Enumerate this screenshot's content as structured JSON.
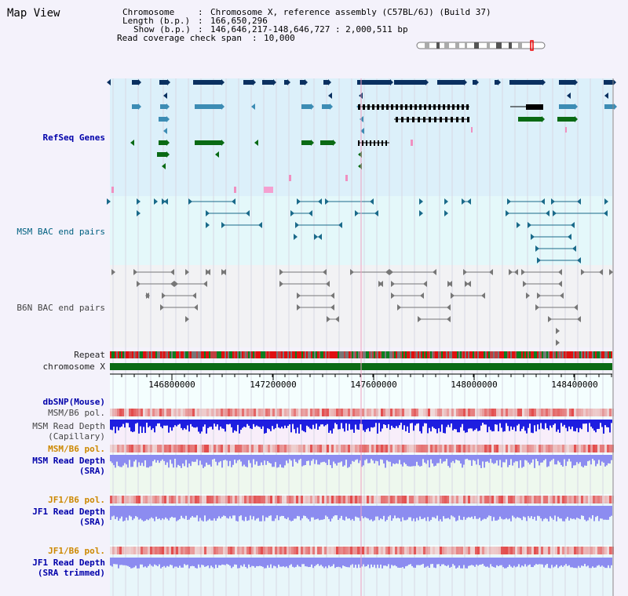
{
  "view_title": "Map View",
  "header": {
    "chromosome_label": "Chromosome",
    "chromosome_value": "Chromosome X, reference assembly (C57BL/6J) (Build 37)",
    "length_label": "Length (b.p.)",
    "length_value": "166,650,296",
    "show_label": "Show (b.p.)",
    "show_value": "146,646,217-148,646,727 : 2,000,511 bp",
    "coverage_label": "Read coverage check span",
    "coverage_value": "10,000"
  },
  "tracks": {
    "refseq": "RefSeq Genes",
    "msm_bac": "MSM BAC end pairs",
    "b6n_bac": "B6N BAC end pairs",
    "repeat": "Repeat",
    "chromosome": "chromosome X",
    "dbsnp": "dbSNP(Mouse)",
    "msm_b6_pol_1": "MSM/B6 pol.",
    "msm_read_depth_cap_1": "MSM Read Depth",
    "msm_read_depth_cap_2": "(Capillary)",
    "msm_b6_pol_2": "MSM/B6 pol.",
    "msm_read_depth_sra_1": "MSM Read Depth",
    "msm_read_depth_sra_2": "(SRA)",
    "jf1_b6_pol_1": "JF1/B6 pol.",
    "jf1_read_depth_sra_1": "JF1 Read Depth",
    "jf1_read_depth_sra_2": "(SRA)",
    "jf1_b6_pol_2": "JF1/B6 pol.",
    "jf1_read_depth_trim_1": "JF1 Read Depth",
    "jf1_read_depth_trim_2": "(SRA trimmed)"
  },
  "axis": {
    "ticks": [
      "146800000",
      "147200000",
      "147600000",
      "148000000",
      "148400000"
    ]
  },
  "colors": {
    "refseq_bg": "#dcf0fa",
    "msm_bg": "#e4f8fa",
    "b6n_bg": "#f2f2f4",
    "gene_dark": "#0a3060",
    "gene_mid": "#3c8cb4",
    "gene_green": "#0a6a14",
    "chrom_green": "#0a6a14",
    "depth_blue": "#1e1ee0",
    "depth_light": "#8c8cf0"
  }
}
